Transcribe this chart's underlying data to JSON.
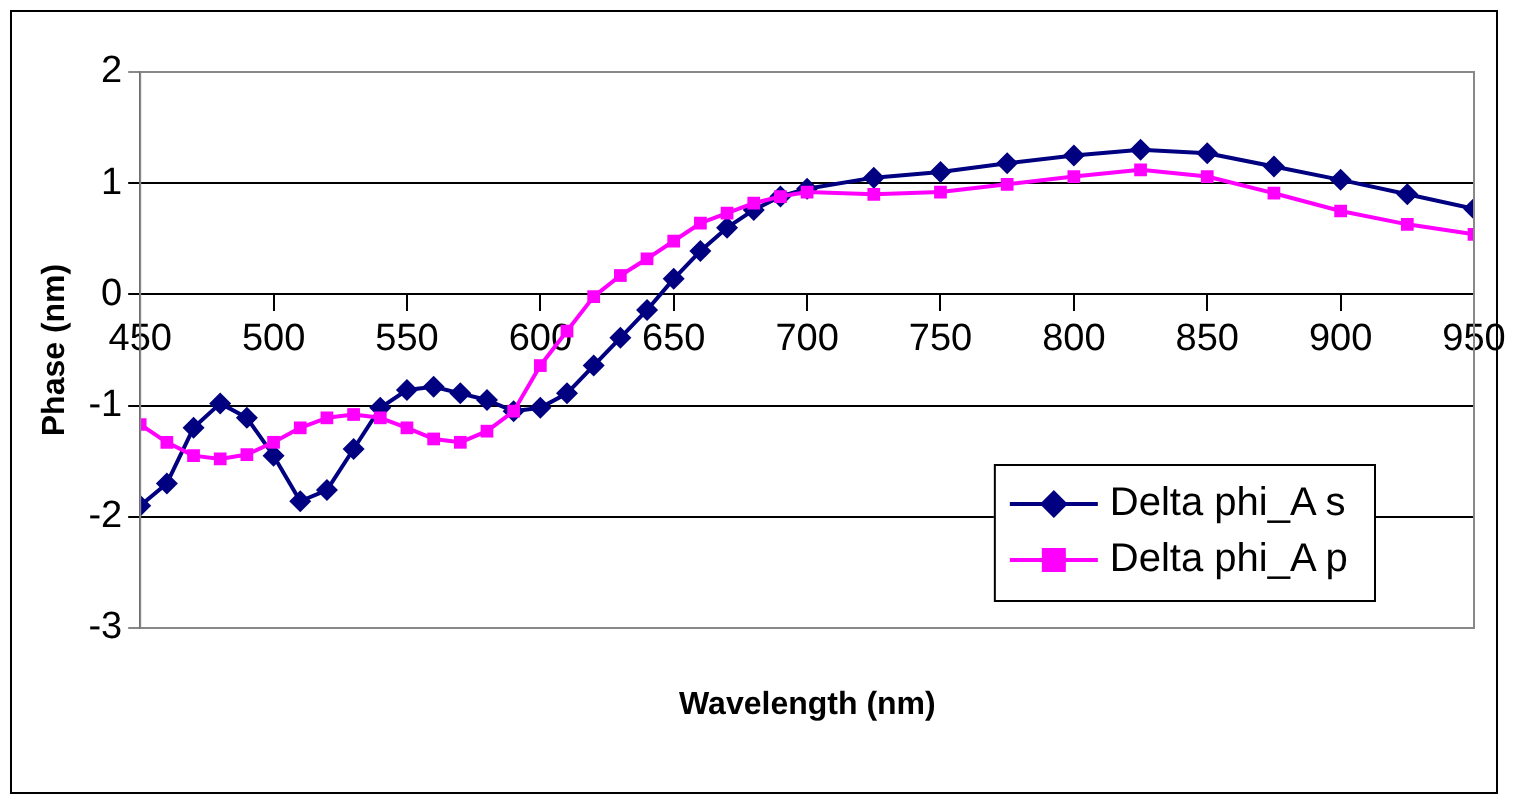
{
  "chart_data": {
    "type": "line",
    "xlabel": "Wavelength (nm)",
    "ylabel": "Phase (nm)",
    "xlim": [
      450,
      950
    ],
    "xticks": [
      450,
      500,
      550,
      600,
      650,
      700,
      750,
      800,
      850,
      900,
      950
    ],
    "ylim": [
      -3,
      2
    ],
    "yticks": [
      -3,
      -2,
      -1,
      0,
      1,
      2
    ],
    "grid": "y",
    "legend": "bottom right",
    "line_style": "solid",
    "x": [
      450,
      460,
      470,
      480,
      490,
      500,
      510,
      520,
      530,
      540,
      550,
      560,
      570,
      580,
      590,
      600,
      610,
      620,
      630,
      640,
      650,
      660,
      670,
      680,
      690,
      700,
      725,
      750,
      775,
      800,
      825,
      850,
      875,
      900,
      925,
      950
    ],
    "series": [
      {
        "name": "Delta phi_A s",
        "color": "#000080",
        "marker": "diamond",
        "values": [
          -1.9,
          -1.7,
          -1.2,
          -0.98,
          -1.11,
          -1.45,
          -1.86,
          -1.76,
          -1.39,
          -1.02,
          -0.86,
          -0.83,
          -0.89,
          -0.95,
          -1.05,
          -1.02,
          -0.89,
          -0.64,
          -0.39,
          -0.14,
          0.14,
          0.39,
          0.6,
          0.76,
          0.88,
          0.95,
          1.05,
          1.1,
          1.18,
          1.25,
          1.3,
          1.27,
          1.15,
          1.03,
          0.9,
          0.77
        ]
      },
      {
        "name": "Delta phi_A p",
        "color": "#ff00ff",
        "marker": "square",
        "values": [
          -1.17,
          -1.33,
          -1.45,
          -1.48,
          -1.44,
          -1.33,
          -1.2,
          -1.11,
          -1.08,
          -1.11,
          -1.2,
          -1.3,
          -1.33,
          -1.23,
          -1.05,
          -0.64,
          -0.33,
          -0.02,
          0.17,
          0.32,
          0.48,
          0.64,
          0.73,
          0.82,
          0.88,
          0.92,
          0.9,
          0.92,
          0.99,
          1.06,
          1.12,
          1.06,
          0.91,
          0.75,
          0.63,
          0.54
        ]
      }
    ]
  }
}
